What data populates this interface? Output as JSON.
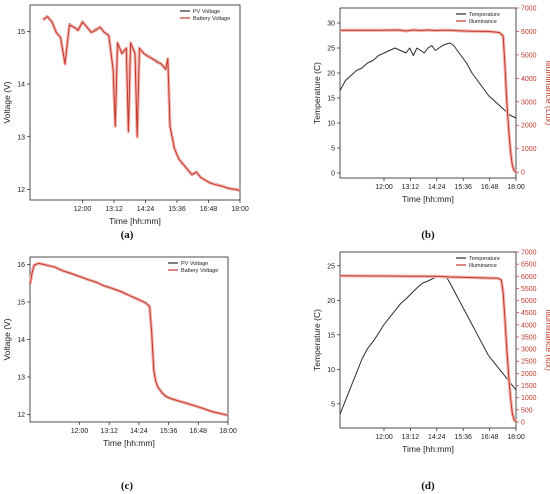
{
  "colors": {
    "pv": "#2b2b2b",
    "battery": "#c0392b",
    "halo": "#f3b5b0"
  },
  "chart_data": [
    {
      "panel": "(a)",
      "type": "line",
      "xlabel": "Time [hh:mm]",
      "ylabel": "Voltage (V)",
      "xticks": [
        "12:00",
        "13:12",
        "14:24",
        "15:36",
        "16:48",
        "18:00"
      ],
      "xlim": [
        600,
        1080
      ],
      "ylim": [
        11.8,
        15.5
      ],
      "yticks": [
        12,
        13,
        14,
        15
      ],
      "legend": "top-right",
      "series": [
        {
          "name": "PV Voltage",
          "axis": "left",
          "color": "#2b2b2b",
          "x": [
            630,
            640,
            650,
            660,
            670,
            680,
            690,
            700,
            710,
            720,
            730,
            740,
            750,
            760,
            770,
            780,
            790,
            795,
            800,
            805,
            810,
            820,
            825,
            830,
            840,
            845,
            850,
            860,
            870,
            880,
            890,
            900,
            910,
            915,
            920,
            930,
            940,
            950,
            960,
            970,
            980,
            990,
            1000,
            1010,
            1020,
            1030,
            1040,
            1050,
            1060,
            1070,
            1080
          ],
          "y": [
            15.25,
            15.3,
            15.2,
            15.0,
            14.9,
            14.4,
            15.15,
            15.1,
            15.05,
            15.2,
            15.1,
            15.0,
            15.05,
            15.1,
            15.0,
            14.95,
            14.3,
            13.2,
            14.8,
            14.7,
            14.6,
            14.7,
            13.1,
            14.8,
            14.6,
            13.0,
            14.7,
            14.6,
            14.55,
            14.5,
            14.45,
            14.4,
            14.3,
            14.5,
            13.2,
            12.8,
            12.6,
            12.5,
            12.4,
            12.3,
            12.35,
            12.25,
            12.2,
            12.15,
            12.12,
            12.1,
            12.08,
            12.05,
            12.03,
            12.02,
            12.0
          ]
        },
        {
          "name": "Battery Voltage",
          "axis": "left",
          "color": "#c0392b",
          "x": [
            630,
            640,
            650,
            660,
            670,
            680,
            690,
            700,
            710,
            720,
            730,
            740,
            750,
            760,
            770,
            780,
            790,
            795,
            800,
            805,
            810,
            820,
            825,
            830,
            840,
            845,
            850,
            860,
            870,
            880,
            890,
            900,
            910,
            915,
            920,
            930,
            940,
            950,
            960,
            970,
            980,
            990,
            1000,
            1010,
            1020,
            1030,
            1040,
            1050,
            1060,
            1070,
            1080
          ],
          "y": [
            15.22,
            15.28,
            15.18,
            14.98,
            14.88,
            14.38,
            15.12,
            15.08,
            15.02,
            15.18,
            15.08,
            14.98,
            15.02,
            15.08,
            14.98,
            14.92,
            14.28,
            13.2,
            14.78,
            14.68,
            14.58,
            14.68,
            13.1,
            14.78,
            14.58,
            13.0,
            14.68,
            14.58,
            14.52,
            14.48,
            14.42,
            14.38,
            14.28,
            14.48,
            13.2,
            12.78,
            12.58,
            12.48,
            12.38,
            12.28,
            12.33,
            12.23,
            12.18,
            12.13,
            12.1,
            12.08,
            12.06,
            12.03,
            12.01,
            12.0,
            11.98
          ]
        }
      ]
    },
    {
      "panel": "(b)",
      "type": "line",
      "xlabel": "Time [hh:mm]",
      "ylabel": "Temperature (C)",
      "y2label": "Illuminance (Lux)",
      "xticks": [
        "12:00",
        "13:12",
        "14:24",
        "15:36",
        "16:48",
        "18:00"
      ],
      "xlim": [
        600,
        1080
      ],
      "ylim": [
        -1,
        33
      ],
      "yticks": [
        0,
        5,
        10,
        15,
        20,
        25,
        30
      ],
      "y2lim": [
        -250,
        7000
      ],
      "y2ticks": [
        0,
        1000,
        2000,
        3000,
        4000,
        5000,
        6000,
        7000
      ],
      "legend": "top-right",
      "series": [
        {
          "name": "Temperature",
          "axis": "left",
          "color": "#2b2b2b",
          "x": [
            600,
            615,
            630,
            645,
            660,
            675,
            690,
            705,
            720,
            735,
            750,
            765,
            780,
            790,
            800,
            810,
            820,
            830,
            840,
            850,
            860,
            870,
            880,
            890,
            900,
            910,
            920,
            930,
            945,
            960,
            975,
            990,
            1005,
            1020,
            1035,
            1050,
            1065,
            1080
          ],
          "y": [
            16.5,
            18.5,
            19.5,
            20.5,
            21,
            22,
            22.5,
            23.5,
            24,
            24.5,
            25,
            24.5,
            24,
            25,
            23.5,
            25,
            24.5,
            24,
            25,
            25.5,
            24.5,
            25,
            25.5,
            25.8,
            26,
            25.5,
            24.5,
            23.5,
            22,
            20,
            18.5,
            17,
            15.5,
            14.5,
            13.5,
            12.5,
            11.5,
            11
          ]
        },
        {
          "name": "Illuminance",
          "axis": "right",
          "color": "#c0392b",
          "x": [
            600,
            700,
            760,
            780,
            800,
            820,
            840,
            860,
            880,
            900,
            920,
            940,
            960,
            980,
            1000,
            1020,
            1035,
            1045,
            1050,
            1055,
            1060,
            1065,
            1070,
            1075,
            1080
          ],
          "y": [
            6050,
            6050,
            6060,
            6020,
            6060,
            6040,
            6060,
            6040,
            6050,
            6050,
            6030,
            6020,
            6010,
            6000,
            6000,
            5980,
            5950,
            5800,
            4500,
            3000,
            1800,
            900,
            300,
            60,
            20
          ]
        }
      ]
    },
    {
      "panel": "(c)",
      "type": "line",
      "xlabel": "Time [hh:mm]",
      "ylabel": "Voltage (V)",
      "xticks": [
        "12:00",
        "13:12",
        "14:24",
        "15:36",
        "16:48",
        "18:00"
      ],
      "xlim": [
        600,
        1080
      ],
      "ylim": [
        11.8,
        16.2
      ],
      "yticks": [
        12,
        13,
        14,
        15,
        16
      ],
      "legend": "top-right",
      "series": [
        {
          "name": "PV Voltage",
          "axis": "left",
          "color": "#2b2b2b",
          "x": [
            600,
            605,
            610,
            620,
            630,
            640,
            660,
            680,
            700,
            720,
            740,
            760,
            780,
            800,
            820,
            840,
            860,
            880,
            890,
            895,
            900,
            905,
            910,
            920,
            930,
            940,
            960,
            980,
            1000,
            1020,
            1040,
            1060,
            1080
          ],
          "y": [
            15.5,
            15.8,
            16.0,
            16.05,
            16.03,
            16.0,
            15.95,
            15.85,
            15.78,
            15.7,
            15.62,
            15.55,
            15.45,
            15.38,
            15.3,
            15.2,
            15.1,
            15.0,
            14.9,
            14.2,
            13.2,
            12.9,
            12.75,
            12.6,
            12.5,
            12.45,
            12.38,
            12.32,
            12.25,
            12.18,
            12.1,
            12.05,
            12.0
          ]
        },
        {
          "name": "Battery Voltage",
          "axis": "left",
          "color": "#c0392b",
          "x": [
            600,
            605,
            610,
            620,
            630,
            640,
            660,
            680,
            700,
            720,
            740,
            760,
            780,
            800,
            820,
            840,
            860,
            880,
            890,
            895,
            900,
            905,
            910,
            920,
            930,
            940,
            960,
            980,
            1000,
            1020,
            1040,
            1060,
            1080
          ],
          "y": [
            15.48,
            15.78,
            15.98,
            16.03,
            16.01,
            15.98,
            15.93,
            15.83,
            15.76,
            15.68,
            15.6,
            15.53,
            15.43,
            15.36,
            15.28,
            15.18,
            15.08,
            14.98,
            14.88,
            14.18,
            13.18,
            12.88,
            12.73,
            12.58,
            12.48,
            12.43,
            12.36,
            12.3,
            12.23,
            12.16,
            12.08,
            12.03,
            11.98
          ]
        }
      ]
    },
    {
      "panel": "(d)",
      "type": "line",
      "xlabel": "Time [hh:mm]",
      "ylabel": "Temperature (C)",
      "y2label": "Illuminance (lux)",
      "xticks": [
        "12:00",
        "13:12",
        "14:24",
        "15:36",
        "16:48",
        "18:00"
      ],
      "xlim": [
        600,
        1080
      ],
      "ylim": [
        1.5,
        27
      ],
      "yticks": [
        5,
        10,
        15,
        20,
        25
      ],
      "y2lim": [
        -250,
        7000
      ],
      "y2ticks": [
        0,
        500,
        1000,
        1500,
        2000,
        2500,
        3000,
        3500,
        4000,
        4500,
        5000,
        5500,
        6000,
        6500,
        7000
      ],
      "legend": "top-right",
      "series": [
        {
          "name": "Temperature",
          "axis": "left",
          "color": "#2b2b2b",
          "x": [
            600,
            615,
            630,
            645,
            660,
            675,
            690,
            705,
            720,
            735,
            750,
            765,
            780,
            795,
            810,
            825,
            840,
            855,
            870,
            880,
            890,
            900,
            910,
            920,
            930,
            945,
            960,
            975,
            990,
            1005,
            1020,
            1035,
            1050,
            1065,
            1080
          ],
          "y": [
            3.5,
            5.5,
            7.5,
            9.5,
            11.5,
            13,
            14,
            15.2,
            16.5,
            17.5,
            18.5,
            19.5,
            20.2,
            21,
            21.8,
            22.5,
            22.8,
            23.2,
            23.5,
            23.6,
            23.4,
            22.5,
            21.5,
            20.5,
            19.5,
            18,
            16.5,
            15,
            13.5,
            12,
            11,
            10,
            9,
            8,
            7
          ]
        },
        {
          "name": "Illuminance",
          "axis": "right",
          "color": "#c0392b",
          "x": [
            600,
            700,
            800,
            860,
            900,
            960,
            1000,
            1030,
            1040,
            1045,
            1050,
            1055,
            1060,
            1065,
            1070,
            1075,
            1080
          ],
          "y": [
            6020,
            6010,
            6000,
            6000,
            5970,
            5950,
            5930,
            5920,
            5850,
            5300,
            4200,
            3000,
            1900,
            1000,
            350,
            80,
            20
          ]
        }
      ]
    }
  ]
}
